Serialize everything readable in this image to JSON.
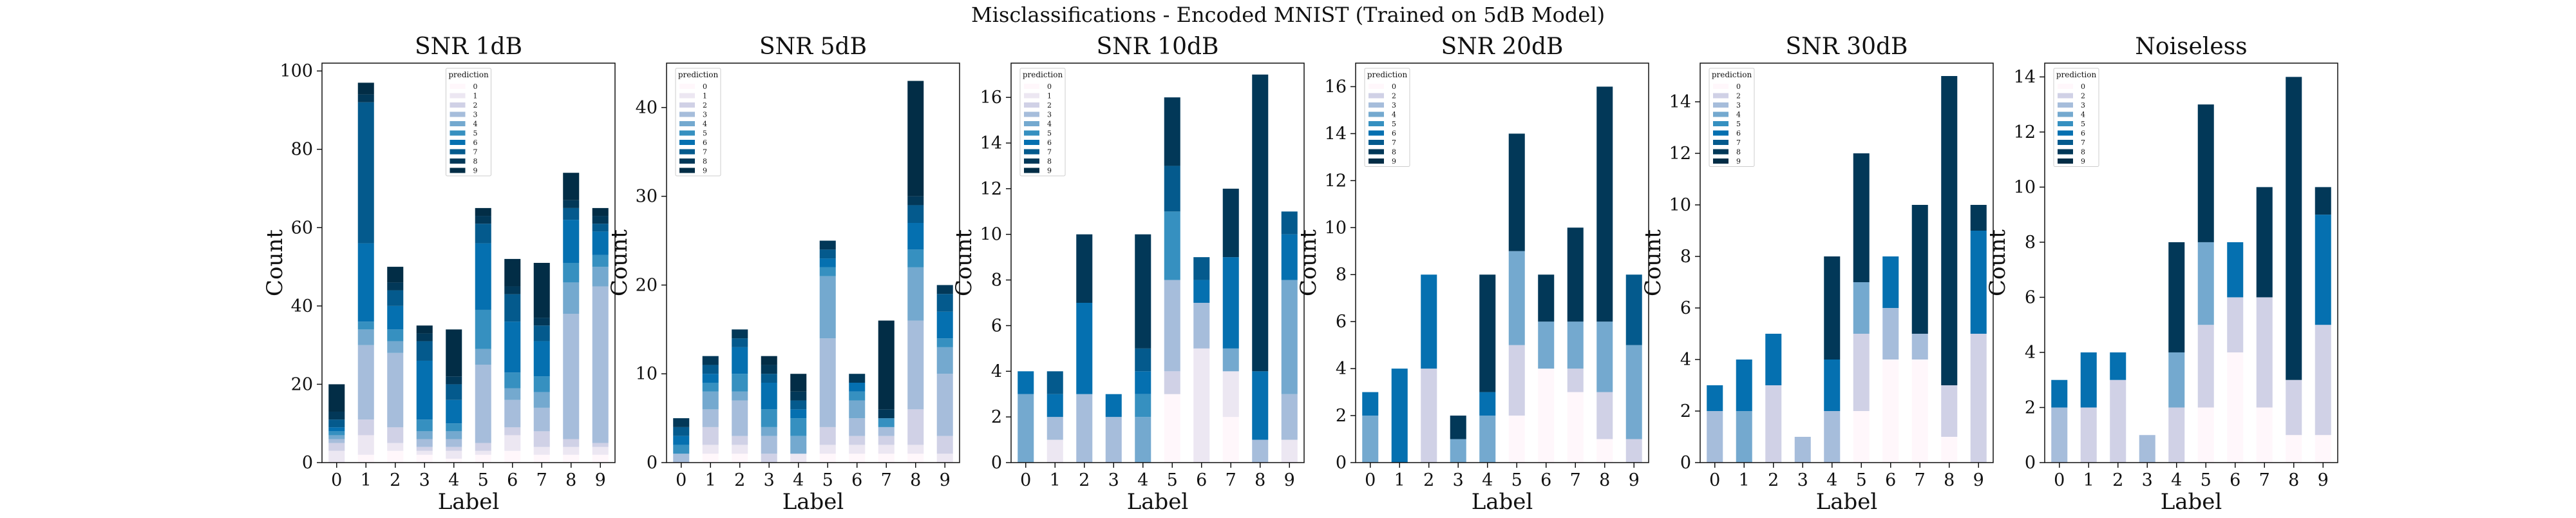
{
  "figure": {
    "suptitle": "Misclassifications - Encoded MNIST (Trained on 5dB Model)"
  },
  "palette": [
    "#fff7fb",
    "#ece7f2",
    "#d0d1e6",
    "#a6bddb",
    "#74a9cf",
    "#3690c0",
    "#0570b0",
    "#045a8d",
    "#023858",
    "#022d46"
  ],
  "chart_data": [
    {
      "type": "bar",
      "stacked": true,
      "title": "SNR 1dB",
      "xlabel": "Label",
      "ylabel": "Count",
      "categories": [
        "0",
        "1",
        "2",
        "3",
        "4",
        "5",
        "6",
        "7",
        "8",
        "9"
      ],
      "ylim": [
        0,
        102
      ],
      "yticks": [
        0,
        20,
        40,
        60,
        80,
        100
      ],
      "legend": {
        "title": "prediction",
        "entries": [
          "0",
          "1",
          "2",
          "3",
          "4",
          "5",
          "6",
          "7",
          "8",
          "9"
        ],
        "placement": "top-center"
      },
      "series": [
        {
          "name": "0",
          "values": [
            0,
            2,
            3,
            2,
            1,
            2,
            3,
            2,
            2,
            2
          ]
        },
        {
          "name": "1",
          "values": [
            3,
            5,
            2,
            1,
            2,
            1,
            4,
            2,
            2,
            2
          ]
        },
        {
          "name": "2",
          "values": [
            2,
            4,
            4,
            1,
            1,
            2,
            2,
            4,
            2,
            1
          ]
        },
        {
          "name": "3",
          "values": [
            1,
            19,
            19,
            2,
            2,
            20,
            7,
            6,
            32,
            40
          ]
        },
        {
          "name": "4",
          "values": [
            1,
            4,
            3,
            2,
            2,
            4,
            3,
            4,
            8,
            5
          ]
        },
        {
          "name": "5",
          "values": [
            1,
            2,
            3,
            3,
            2,
            10,
            4,
            4,
            5,
            3
          ]
        },
        {
          "name": "6",
          "values": [
            1,
            20,
            6,
            15,
            6,
            17,
            13,
            9,
            11,
            6
          ]
        },
        {
          "name": "7",
          "values": [
            2,
            36,
            4,
            5,
            4,
            5,
            7,
            4,
            3,
            2
          ]
        },
        {
          "name": "8",
          "values": [
            2,
            2,
            2,
            2,
            2,
            2,
            2,
            2,
            2,
            2
          ]
        },
        {
          "name": "9",
          "values": [
            7,
            3,
            4,
            2,
            12,
            2,
            7,
            14,
            7,
            2
          ]
        }
      ]
    },
    {
      "type": "bar",
      "stacked": true,
      "title": "SNR 5dB",
      "xlabel": "Label",
      "ylabel": "Count",
      "categories": [
        "0",
        "1",
        "2",
        "3",
        "4",
        "5",
        "6",
        "7",
        "8",
        "9"
      ],
      "ylim": [
        0,
        45
      ],
      "yticks": [
        0,
        10,
        20,
        30,
        40
      ],
      "legend": {
        "title": "prediction",
        "entries": [
          "0",
          "1",
          "2",
          "3",
          "4",
          "5",
          "6",
          "7",
          "8",
          "9"
        ],
        "placement": "top-left"
      },
      "series": [
        {
          "name": "0",
          "values": [
            0,
            1,
            1,
            0,
            0,
            1,
            1,
            1,
            1,
            0
          ]
        },
        {
          "name": "1",
          "values": [
            0,
            1,
            1,
            0,
            1,
            1,
            1,
            1,
            1,
            1
          ]
        },
        {
          "name": "2",
          "values": [
            0,
            2,
            1,
            1,
            0,
            2,
            1,
            1,
            4,
            2
          ]
        },
        {
          "name": "3",
          "values": [
            1,
            2,
            4,
            2,
            0,
            10,
            2,
            1,
            10,
            7
          ]
        },
        {
          "name": "4",
          "values": [
            0,
            2,
            1,
            1,
            2,
            7,
            2,
            0,
            6,
            3
          ]
        },
        {
          "name": "5",
          "values": [
            1,
            1,
            2,
            2,
            2,
            1,
            1,
            1,
            2,
            1
          ]
        },
        {
          "name": "6",
          "values": [
            1,
            1,
            3,
            3,
            1,
            1,
            1,
            0,
            3,
            3
          ]
        },
        {
          "name": "7",
          "values": [
            1,
            1,
            1,
            1,
            1,
            1,
            0,
            0,
            2,
            2
          ]
        },
        {
          "name": "8",
          "values": [
            1,
            1,
            1,
            1,
            1,
            1,
            1,
            1,
            1,
            1
          ]
        },
        {
          "name": "9",
          "values": [
            0,
            0,
            0,
            1,
            2,
            0,
            0,
            10,
            13,
            0
          ]
        }
      ]
    },
    {
      "type": "bar",
      "stacked": true,
      "title": "SNR 10dB",
      "xlabel": "Label",
      "ylabel": "Count",
      "categories": [
        "0",
        "1",
        "2",
        "3",
        "4",
        "5",
        "6",
        "7",
        "8",
        "9"
      ],
      "ylim": [
        0,
        17.5
      ],
      "yticks": [
        0,
        2,
        4,
        6,
        8,
        10,
        12,
        14,
        16
      ],
      "legend": {
        "title": "prediction",
        "entries": [
          "0",
          "1",
          "2",
          "3",
          "4",
          "5",
          "6",
          "7",
          "8",
          "9"
        ],
        "placement": "top-left"
      },
      "series": [
        {
          "name": "0",
          "values": [
            0,
            0,
            0,
            0,
            0,
            3,
            0,
            2,
            0,
            0
          ]
        },
        {
          "name": "1",
          "values": [
            0,
            1,
            0,
            0,
            0,
            0,
            5,
            2,
            0,
            1
          ]
        },
        {
          "name": "2",
          "values": [
            0,
            0,
            0,
            0,
            0,
            1,
            0,
            0,
            0,
            0
          ]
        },
        {
          "name": "3",
          "values": [
            0,
            1,
            3,
            2,
            0,
            4,
            2,
            0,
            1,
            2
          ]
        },
        {
          "name": "4",
          "values": [
            3,
            0,
            0,
            0,
            2,
            0,
            0,
            1,
            0,
            5
          ]
        },
        {
          "name": "5",
          "values": [
            0,
            0,
            0,
            0,
            1,
            3,
            0,
            0,
            0,
            0
          ]
        },
        {
          "name": "6",
          "values": [
            1,
            1,
            4,
            1,
            1,
            0,
            1,
            4,
            3,
            2
          ]
        },
        {
          "name": "7",
          "values": [
            0,
            1,
            0,
            0,
            1,
            2,
            1,
            0,
            0,
            1
          ]
        },
        {
          "name": "8",
          "values": [
            0,
            0,
            3,
            0,
            5,
            3,
            0,
            3,
            13,
            0
          ]
        },
        {
          "name": "9",
          "values": [
            0,
            0,
            0,
            0,
            0,
            0,
            0,
            0,
            0,
            0
          ]
        }
      ]
    },
    {
      "type": "bar",
      "stacked": true,
      "title": "SNR 20dB",
      "xlabel": "Label",
      "ylabel": "Count",
      "categories": [
        "0",
        "1",
        "2",
        "3",
        "4",
        "5",
        "6",
        "7",
        "8",
        "9"
      ],
      "ylim": [
        0,
        17
      ],
      "yticks": [
        0,
        2,
        4,
        6,
        8,
        10,
        12,
        14,
        16
      ],
      "legend": {
        "title": "prediction",
        "entries": [
          "0",
          "2",
          "3",
          "4",
          "5",
          "6",
          "7",
          "8",
          "9"
        ],
        "placement": "top-left"
      },
      "series": [
        {
          "name": "0",
          "values": [
            0,
            0,
            0,
            0,
            0,
            2,
            4,
            3,
            1,
            0
          ]
        },
        {
          "name": "2",
          "values": [
            0,
            0,
            4,
            0,
            0,
            3,
            0,
            1,
            2,
            1
          ]
        },
        {
          "name": "3",
          "values": [
            0,
            0,
            0,
            0,
            0,
            0,
            0,
            0,
            0,
            0
          ]
        },
        {
          "name": "4",
          "values": [
            2,
            0,
            0,
            1,
            2,
            4,
            2,
            2,
            3,
            4
          ]
        },
        {
          "name": "5",
          "values": [
            0,
            0,
            0,
            0,
            0,
            0,
            0,
            0,
            0,
            0
          ]
        },
        {
          "name": "6",
          "values": [
            1,
            4,
            4,
            0,
            1,
            0,
            0,
            0,
            0,
            0
          ]
        },
        {
          "name": "7",
          "values": [
            0,
            0,
            0,
            0,
            0,
            0,
            0,
            0,
            0,
            3
          ]
        },
        {
          "name": "8",
          "values": [
            0,
            0,
            0,
            1,
            5,
            5,
            2,
            4,
            10,
            0
          ]
        },
        {
          "name": "9",
          "values": [
            0,
            0,
            0,
            0,
            0,
            0,
            0,
            0,
            0,
            0
          ]
        }
      ]
    },
    {
      "type": "bar",
      "stacked": true,
      "title": "SNR 30dB",
      "xlabel": "Label",
      "ylabel": "Count",
      "categories": [
        "0",
        "1",
        "2",
        "3",
        "4",
        "5",
        "6",
        "7",
        "8",
        "9"
      ],
      "ylim": [
        0,
        15.5
      ],
      "yticks": [
        0,
        2,
        4,
        6,
        8,
        10,
        12,
        14
      ],
      "legend": {
        "title": "prediction",
        "entries": [
          "0",
          "2",
          "3",
          "4",
          "5",
          "6",
          "7",
          "8",
          "9"
        ],
        "placement": "top-left"
      },
      "series": [
        {
          "name": "0",
          "values": [
            0,
            0,
            0,
            0,
            0,
            2,
            4,
            4,
            1,
            0
          ]
        },
        {
          "name": "2",
          "values": [
            0,
            0,
            3,
            0,
            0,
            3,
            0,
            0,
            2,
            5
          ]
        },
        {
          "name": "3",
          "values": [
            2,
            0,
            0,
            1,
            2,
            0,
            2,
            1,
            0,
            0
          ]
        },
        {
          "name": "4",
          "values": [
            0,
            2,
            0,
            0,
            0,
            2,
            0,
            0,
            0,
            0
          ]
        },
        {
          "name": "5",
          "values": [
            0,
            0,
            0,
            0,
            0,
            0,
            0,
            0,
            0,
            0
          ]
        },
        {
          "name": "6",
          "values": [
            1,
            2,
            2,
            0,
            2,
            0,
            2,
            0,
            0,
            4
          ]
        },
        {
          "name": "7",
          "values": [
            0,
            0,
            0,
            0,
            0,
            0,
            0,
            0,
            0,
            0
          ]
        },
        {
          "name": "8",
          "values": [
            0,
            0,
            0,
            0,
            4,
            5,
            0,
            5,
            12,
            1
          ]
        },
        {
          "name": "9",
          "values": [
            0,
            0,
            0,
            0,
            0,
            0,
            0,
            0,
            0,
            0
          ]
        }
      ]
    },
    {
      "type": "bar",
      "stacked": true,
      "title": "Noiseless",
      "xlabel": "Label",
      "ylabel": "Count",
      "categories": [
        "0",
        "1",
        "2",
        "3",
        "4",
        "5",
        "6",
        "7",
        "8",
        "9"
      ],
      "ylim": [
        0,
        14.5
      ],
      "yticks": [
        0,
        2,
        4,
        6,
        8,
        10,
        12,
        14
      ],
      "legend": {
        "title": "prediction",
        "entries": [
          "0",
          "2",
          "3",
          "4",
          "5",
          "6",
          "7",
          "8",
          "9"
        ],
        "placement": "top-left"
      },
      "series": [
        {
          "name": "0",
          "values": [
            0,
            0,
            0,
            0,
            0,
            2,
            4,
            2,
            1,
            1
          ]
        },
        {
          "name": "2",
          "values": [
            0,
            2,
            3,
            0,
            2,
            3,
            2,
            4,
            2,
            4
          ]
        },
        {
          "name": "3",
          "values": [
            2,
            0,
            0,
            1,
            0,
            0,
            0,
            0,
            0,
            0
          ]
        },
        {
          "name": "4",
          "values": [
            0,
            0,
            0,
            0,
            2,
            3,
            0,
            0,
            0,
            0
          ]
        },
        {
          "name": "5",
          "values": [
            0,
            0,
            0,
            0,
            0,
            0,
            0,
            0,
            0,
            0
          ]
        },
        {
          "name": "6",
          "values": [
            1,
            2,
            1,
            0,
            0,
            0,
            2,
            0,
            0,
            4
          ]
        },
        {
          "name": "7",
          "values": [
            0,
            0,
            0,
            0,
            0,
            0,
            0,
            0,
            0,
            0
          ]
        },
        {
          "name": "8",
          "values": [
            0,
            0,
            0,
            0,
            4,
            5,
            0,
            4,
            11,
            1
          ]
        },
        {
          "name": "9",
          "values": [
            0,
            0,
            0,
            0,
            0,
            0,
            0,
            0,
            0,
            0
          ]
        }
      ]
    }
  ]
}
